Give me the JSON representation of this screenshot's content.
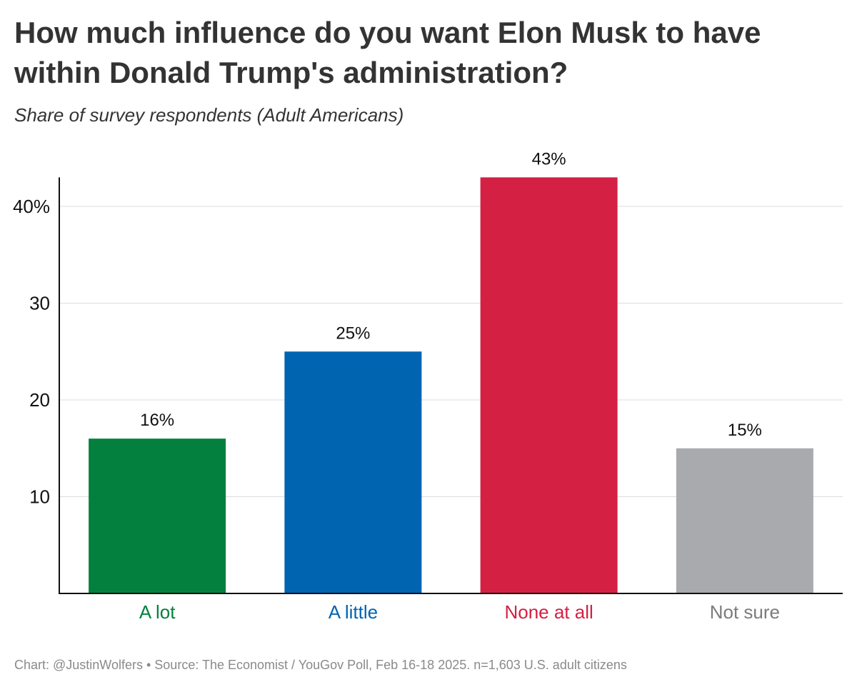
{
  "chart_data": {
    "type": "bar",
    "title": "How much influence do you want Elon Musk to have within Donald Trump's administration?",
    "subtitle": "Share of survey respondents (Adult Americans)",
    "categories": [
      "A lot",
      "A little",
      "None at all",
      "Not sure"
    ],
    "values": [
      16,
      25,
      43,
      15
    ],
    "value_labels": [
      "16%",
      "25%",
      "43%",
      "15%"
    ],
    "colors": [
      "#03803d",
      "#0064b1",
      "#d42043",
      "#a9aaae"
    ],
    "y_ticks": [
      10,
      20,
      30,
      40
    ],
    "y_tick_labels": [
      "10",
      "20",
      "30",
      "40%"
    ],
    "ylim": [
      0,
      43
    ],
    "xlabel": "",
    "ylabel": "",
    "grid": true,
    "source": "Chart: @JustinWolfers • Source: The Economist / YouGov Poll, Feb 16-18 2025. n=1,603 U.S. adult citizens"
  }
}
